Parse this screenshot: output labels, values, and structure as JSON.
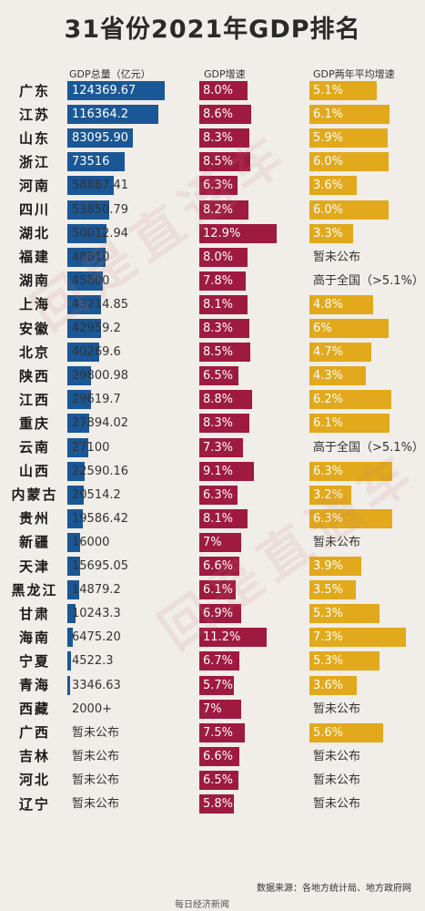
{
  "title": "31省份2021年GDP排名",
  "column_headers": {
    "gdp_total": "GDP总量（亿元）",
    "gdp_growth": "GDP增速",
    "two_year_growth": "GDP两年平均增速"
  },
  "footer": {
    "source": "数据来源：各地方统计局、地方政府网",
    "credit": "每日经济新闻"
  },
  "watermark": "回是直通车",
  "colors": {
    "total_bar": "#1a5796",
    "growth_bar": "#9e1a41",
    "avg_bar": "#e1a91b",
    "background": "#f1ede8"
  },
  "chart_data": {
    "type": "bar",
    "title": "31省份2021年GDP排名",
    "series": [
      {
        "name": "GDP总量（亿元）",
        "labels": [
          "124369.67",
          "116364.2",
          "83095.90",
          "73516",
          "58887.41",
          "53850.79",
          "50012.94",
          "48810",
          "45800",
          "43214.85",
          "42959.2",
          "40269.6",
          "29800.98",
          "29619.7",
          "27894.02",
          "27100",
          "22590.16",
          "20514.2",
          "19586.42",
          "16000",
          "15695.05",
          "14879.2",
          "10243.3",
          "6475.20",
          "4522.3",
          "3346.63",
          "2000+",
          "暂未公布",
          "暂未公布",
          "暂未公布",
          "暂未公布"
        ],
        "values": [
          124369.67,
          116364.2,
          83095.9,
          73516,
          58887.41,
          53850.79,
          50012.94,
          48810,
          45800,
          43214.85,
          42959.2,
          40269.6,
          29800.98,
          29619.7,
          27894.02,
          27100,
          22590.16,
          20514.2,
          19586.42,
          16000,
          15695.05,
          14879.2,
          10243.3,
          6475.2,
          4522.3,
          3346.63,
          null,
          null,
          null,
          null,
          null
        ]
      },
      {
        "name": "GDP增速",
        "labels": [
          "8.0%",
          "8.6%",
          "8.3%",
          "8.5%",
          "6.3%",
          "8.2%",
          "12.9%",
          "8.0%",
          "7.8%",
          "8.1%",
          "8.3%",
          "8.5%",
          "6.5%",
          "8.8%",
          "8.3%",
          "7.3%",
          "9.1%",
          "6.3%",
          "8.1%",
          "7%",
          "6.6%",
          "6.1%",
          "6.9%",
          "11.2%",
          "6.7%",
          "5.7%",
          "7%",
          "7.5%",
          "6.6%",
          "6.5%",
          "5.8%"
        ],
        "values": [
          8.0,
          8.6,
          8.3,
          8.5,
          6.3,
          8.2,
          12.9,
          8.0,
          7.8,
          8.1,
          8.3,
          8.5,
          6.5,
          8.8,
          8.3,
          7.3,
          9.1,
          6.3,
          8.1,
          7,
          6.6,
          6.1,
          6.9,
          11.2,
          6.7,
          5.7,
          7,
          7.5,
          6.6,
          6.5,
          5.8
        ]
      },
      {
        "name": "GDP两年平均增速",
        "labels": [
          "5.1%",
          "6.1%",
          "5.9%",
          "6.0%",
          "3.6%",
          "6.0%",
          "3.3%",
          "暂未公布",
          "高于全国（>5.1%）",
          "4.8%",
          "6%",
          "4.7%",
          "4.3%",
          "6.2%",
          "6.1%",
          "高于全国（>5.1%）",
          "6.3%",
          "3.2%",
          "6.3%",
          "暂未公布",
          "3.9%",
          "3.5%",
          "5.3%",
          "7.3%",
          "5.3%",
          "3.6%",
          "暂未公布",
          "5.6%",
          "暂未公布",
          "暂未公布",
          "暂未公布"
        ],
        "values": [
          5.1,
          6.1,
          5.9,
          6.0,
          3.6,
          6.0,
          3.3,
          null,
          null,
          4.8,
          6,
          4.7,
          4.3,
          6.2,
          6.1,
          null,
          6.3,
          3.2,
          6.3,
          null,
          3.9,
          3.5,
          5.3,
          7.3,
          5.3,
          3.6,
          null,
          5.6,
          null,
          null,
          null
        ]
      }
    ],
    "categories": [
      "广东",
      "江苏",
      "山东",
      "浙江",
      "河南",
      "四川",
      "湖北",
      "福建",
      "湖南",
      "上海",
      "安徽",
      "北京",
      "陕西",
      "江西",
      "重庆",
      "云南",
      "山西",
      "内蒙古",
      "贵州",
      "新疆",
      "天津",
      "黑龙江",
      "甘肃",
      "海南",
      "宁夏",
      "青海",
      "西藏",
      "广西",
      "吉林",
      "河北",
      "辽宁"
    ]
  }
}
